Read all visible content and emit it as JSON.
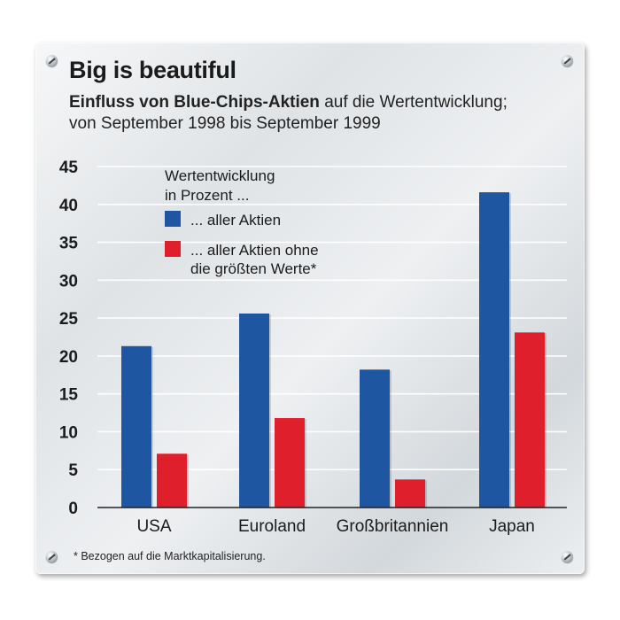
{
  "title": "Big is beautiful",
  "subtitle": {
    "bold": "Einfluss von Blue-Chips-Aktien",
    "rest_line1": " auf die Wertentwicklung;",
    "line2": "von September 1998 bis September 1999"
  },
  "footnote": "* Bezogen auf die Marktkapitalisierung.",
  "colors": {
    "all_stocks": "#1f56a2",
    "without_largest": "#e01f2d",
    "grid": "#ffffff",
    "axis": "#222222"
  },
  "chart_data": {
    "type": "bar",
    "legend_title": [
      "Wertentwicklung",
      "in Prozent ..."
    ],
    "categories": [
      "USA",
      "Euroland",
      "Großbritannien",
      "Japan"
    ],
    "series": [
      {
        "name": "... aller Aktien",
        "values": [
          21.3,
          25.6,
          18.2,
          41.6
        ]
      },
      {
        "name": "... aller Aktien ohne die größten Werte*",
        "name_lines": [
          "... aller Aktien ohne",
          "die größten Werte*"
        ],
        "values": [
          7.1,
          11.8,
          3.7,
          23.1
        ]
      }
    ],
    "ylim": [
      0,
      45
    ],
    "yticks": [
      0,
      5,
      10,
      15,
      20,
      25,
      30,
      35,
      40,
      45
    ],
    "grid": true,
    "legend_position": "top-left"
  }
}
